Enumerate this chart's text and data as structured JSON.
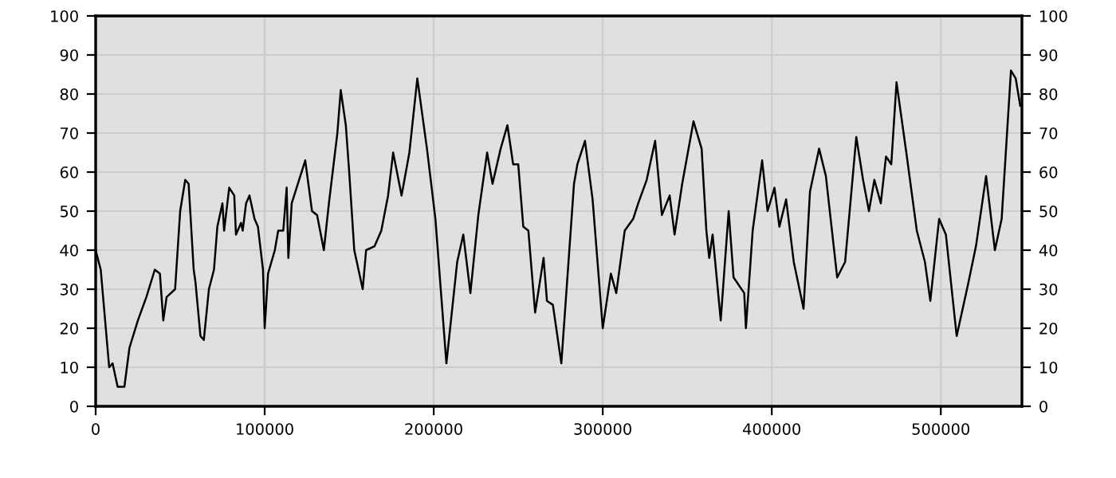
{
  "chart_data": {
    "type": "line",
    "xlim": [
      0,
      548000
    ],
    "xticks": [
      0,
      100000,
      200000,
      300000,
      400000,
      500000
    ],
    "ylim": [
      0,
      100
    ],
    "yticks": [
      0,
      10,
      20,
      30,
      40,
      50,
      60,
      70,
      80,
      90,
      100
    ],
    "y2lim": [
      0,
      100
    ],
    "y2ticks": [
      0,
      10,
      20,
      30,
      40,
      50,
      60,
      70,
      80,
      90,
      100
    ],
    "grid": true,
    "marker": "none",
    "line_style": "solid",
    "series": [
      {
        "color": "#000000",
        "x": [
          0,
          3000,
          8000,
          10000,
          13000,
          17000,
          20000,
          25000,
          30000,
          35000,
          38000,
          40000,
          42000,
          47000,
          50000,
          53000,
          55000,
          58000,
          59000,
          62000,
          64000,
          67000,
          70000,
          72000,
          75000,
          76000,
          79000,
          82000,
          83000,
          86000,
          87000,
          89000,
          91000,
          94000,
          96000,
          99000,
          100000,
          102000,
          106000,
          108000,
          111000,
          113000,
          114000,
          116000,
          124000,
          128000,
          131000,
          135000,
          138000,
          143000,
          145000,
          148000,
          150000,
          153000,
          158000,
          160000,
          165000,
          169000,
          173000,
          176000,
          181000,
          185600,
          190300,
          196000,
          201000,
          207500,
          213900,
          217500,
          221700,
          226400,
          231600,
          234800,
          239600,
          243600,
          247000,
          250000,
          253000,
          256000,
          260000,
          265000,
          267000,
          270500,
          275500,
          283000,
          285000,
          289500,
          294000,
          300000,
          304800,
          308000,
          313000,
          318000,
          321000,
          326000,
          331000,
          335000,
          339600,
          342500,
          347000,
          353700,
          358500,
          361300,
          363000,
          365000,
          369800,
          374500,
          377400,
          383700,
          384700,
          388700,
          394300,
          397500,
          401600,
          404500,
          408500,
          413000,
          418800,
          422600,
          428000,
          432000,
          438700,
          443400,
          450000,
          454000,
          457500,
          460700,
          464500,
          467600,
          470700,
          473800,
          479600,
          485800,
          490600,
          493800,
          499000,
          503000,
          509400,
          516000,
          520800,
          526800,
          532000,
          536000,
          541500,
          544300,
          547000
        ],
        "values": [
          40,
          35,
          10,
          11,
          5,
          5,
          15,
          22,
          28,
          35,
          34,
          22,
          28,
          30,
          50,
          58,
          57,
          35,
          32,
          18,
          17,
          30,
          35,
          46,
          52,
          45,
          56,
          54,
          44,
          47,
          45,
          52,
          54,
          48,
          46,
          35,
          20,
          34,
          40,
          45,
          45,
          56,
          38,
          52,
          63,
          50,
          49,
          40,
          52,
          70,
          81,
          72,
          60,
          40,
          30,
          40,
          41,
          45,
          54,
          65,
          54,
          65,
          84,
          66,
          48,
          11,
          37,
          44,
          29,
          49,
          65,
          57,
          66,
          72,
          62,
          62,
          46,
          45,
          24,
          38,
          27,
          26,
          11,
          57,
          62,
          68,
          53,
          20,
          34,
          29,
          45,
          48,
          52,
          58,
          68,
          49,
          54,
          44,
          57,
          73,
          66,
          45,
          38,
          44,
          22,
          50,
          33,
          29,
          20,
          45,
          63,
          50,
          56,
          46,
          53,
          37,
          25,
          55,
          66,
          59,
          33,
          37,
          69,
          58,
          50,
          58,
          52,
          64,
          62,
          83,
          65,
          45,
          37,
          27,
          48,
          44,
          18,
          31,
          41,
          59,
          40,
          48,
          86,
          84,
          77
        ]
      }
    ]
  }
}
